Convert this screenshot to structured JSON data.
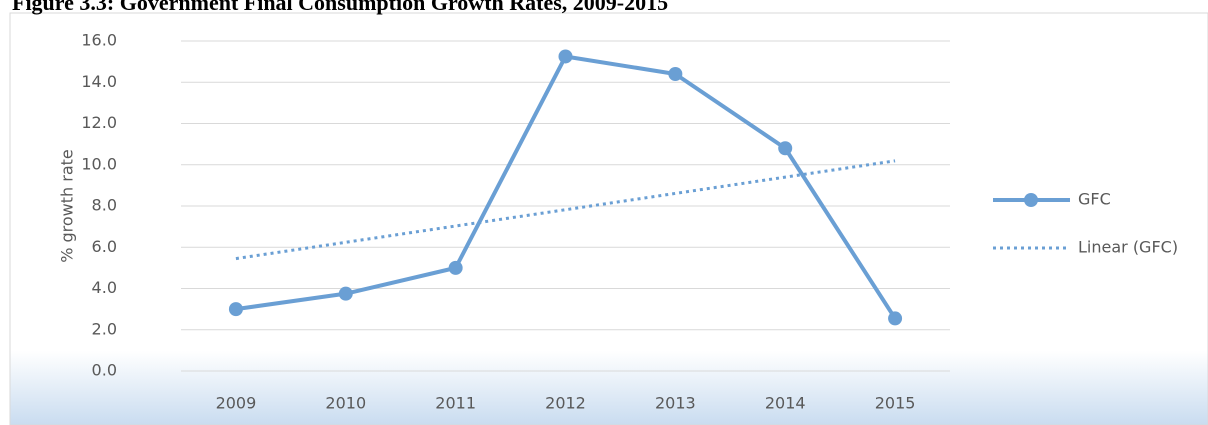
{
  "chart_data": {
    "type": "line",
    "title": "Figure 3.3: Government Final Consumption Growth Rates, 2009-2015",
    "y_label": "% growth rate",
    "categories": [
      "2009",
      "2010",
      "2011",
      "2012",
      "2013",
      "2014",
      "2015"
    ],
    "series": [
      {
        "name": "GFC",
        "color": "#6a9fd4",
        "values": [
          3.0,
          3.75,
          5.0,
          15.25,
          14.4,
          10.8,
          2.55
        ]
      },
      {
        "name": "Linear (GFC)",
        "color": "#6a9fd4",
        "dashed": true,
        "values": [
          5.45,
          6.24,
          7.03,
          7.82,
          8.61,
          9.4,
          10.19
        ]
      }
    ],
    "ylim": [
      0,
      16
    ],
    "yticks": [
      {
        "value": 0,
        "label": "0.0"
      },
      {
        "value": 2,
        "label": "2.0"
      },
      {
        "value": 4,
        "label": "4.0"
      },
      {
        "value": 6,
        "label": "6.0"
      },
      {
        "value": 8,
        "label": "8.0"
      },
      {
        "value": 10,
        "label": "10.0"
      },
      {
        "value": 12,
        "label": "12.0"
      },
      {
        "value": 14,
        "label": "14.0"
      },
      {
        "value": 16,
        "label": "16.0"
      }
    ],
    "grid": true,
    "legend": "right"
  }
}
